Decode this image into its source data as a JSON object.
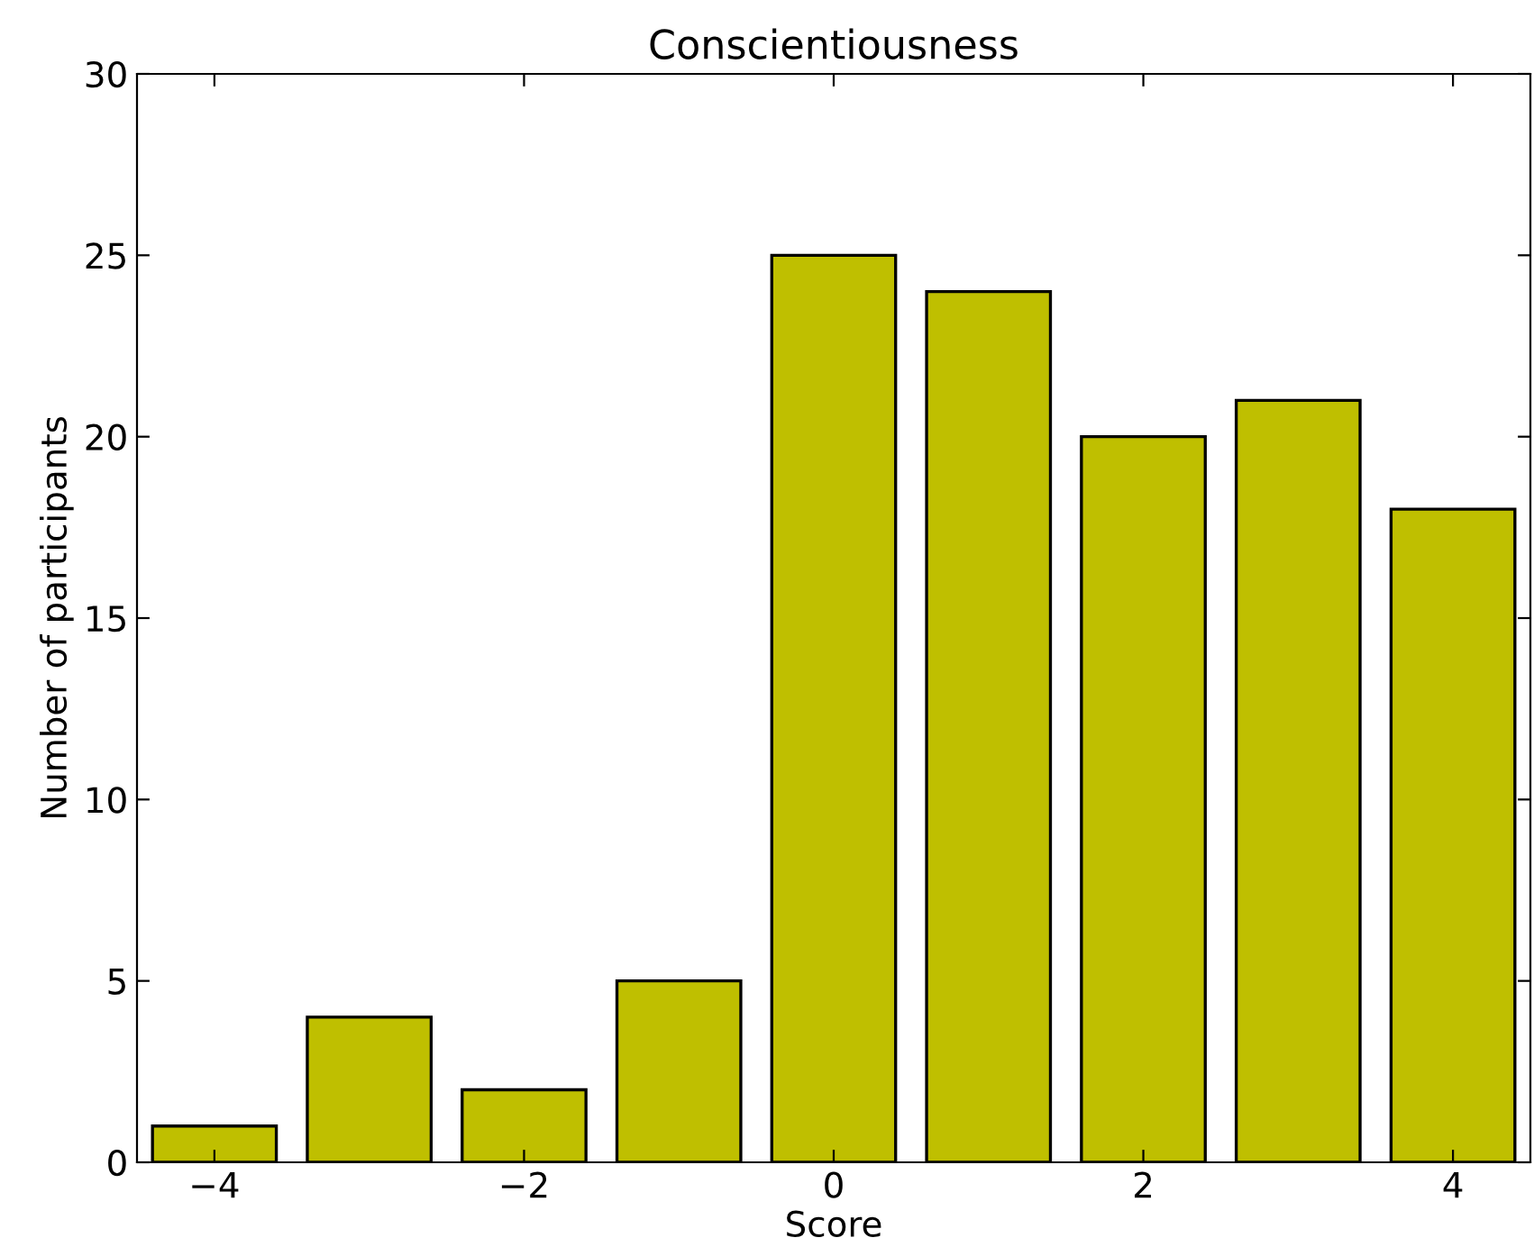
{
  "chart_data": {
    "type": "bar",
    "title": "Conscientiousness",
    "xlabel": "Score",
    "ylabel": "Number of participants",
    "x": [
      -4,
      -3,
      -2,
      -1,
      0,
      1,
      2,
      3,
      4
    ],
    "values": [
      1,
      4,
      2,
      5,
      25,
      24,
      20,
      21,
      18
    ],
    "color": "#bfbf00",
    "xlim": [
      -4.5,
      4.5
    ],
    "xticks": [
      {
        "value": -4,
        "label": "−4"
      },
      {
        "value": -2,
        "label": "−2"
      },
      0,
      2,
      4
    ],
    "ylim": [
      0,
      30
    ],
    "yticks": [
      0,
      5,
      10,
      15,
      20,
      25,
      30
    ],
    "grid": false,
    "legend": false
  }
}
